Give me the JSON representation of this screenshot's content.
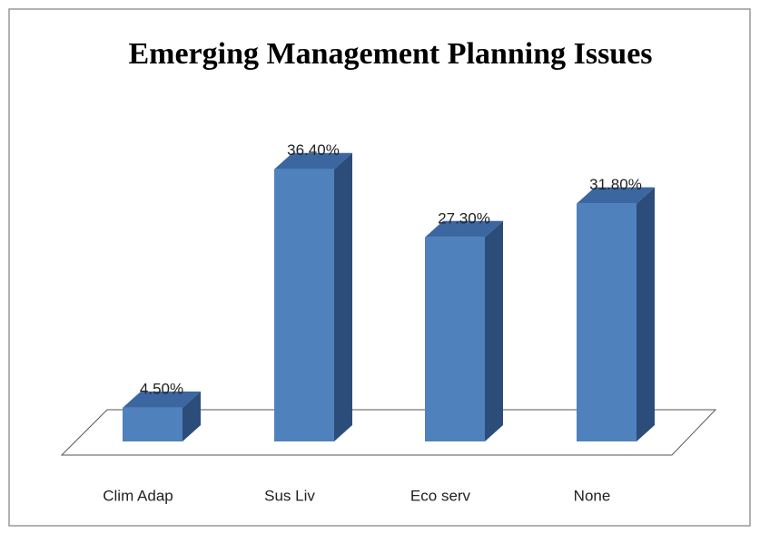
{
  "chart_data": {
    "type": "bar3d",
    "title": "Emerging Management Planning Issues",
    "categories": [
      "Clim Adap",
      "Sus Liv",
      "Eco serv",
      "None"
    ],
    "values": [
      4.5,
      36.4,
      27.3,
      31.8
    ],
    "value_labels": [
      "4.50%",
      "36.40%",
      "27.30%",
      "31.80%"
    ],
    "color": "#4f81bd",
    "ylim": [
      0,
      40
    ]
  }
}
